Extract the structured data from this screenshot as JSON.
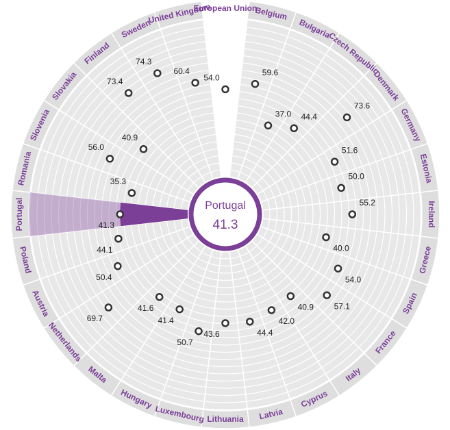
{
  "chart_data": {
    "type": "radial",
    "categories": [
      "European Union",
      "Belgium",
      "Bulgaria",
      "Czech Republic",
      "Denmark",
      "Germany",
      "Estonia",
      "Ireland",
      "Greece",
      "Spain",
      "France",
      "Italy",
      "Cyprus",
      "Latvia",
      "Lithuania",
      "Luxembourg",
      "Hungary",
      "Malta",
      "Netherlands",
      "Austria",
      "Poland",
      "Portugal",
      "Romania",
      "Slovenia",
      "Slovakia",
      "Finland",
      "Sweden",
      "United Kingdom"
    ],
    "values": [
      54.0,
      59.6,
      37.0,
      44.4,
      73.6,
      51.6,
      50.0,
      55.2,
      40.0,
      54.0,
      57.1,
      40.9,
      42.0,
      44.4,
      43.6,
      50.7,
      41.4,
      41.6,
      69.7,
      50.4,
      44.1,
      41.3,
      35.3,
      56.0,
      40.9,
      73.4,
      74.3,
      60.4
    ],
    "value_labels": [
      "54.0",
      "59.6",
      "37.0",
      "44.4",
      "73.6",
      "51.6",
      "50.0",
      "55.2",
      "40.0",
      "54.0",
      "57.1",
      "40.9",
      "42.0",
      "44.4",
      "43.6",
      "50.7",
      "41.4",
      "41.6",
      "69.7",
      "50.4",
      "44.1",
      "41.3",
      "35.3",
      "56.0",
      "40.9",
      "73.4",
      "74.3",
      "60.4"
    ],
    "ylim": [
      0,
      100
    ],
    "highlight": "Portugal",
    "highlight_color": "#7b3f98",
    "color": "#333333"
  }
}
